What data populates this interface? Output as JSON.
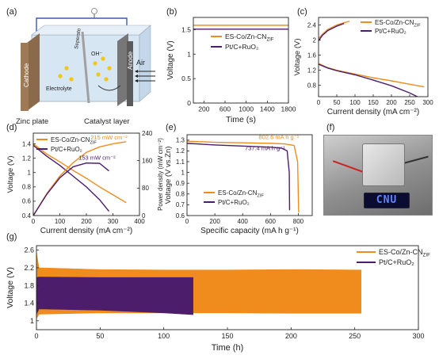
{
  "panels": {
    "a": "(a)",
    "b": "(b)",
    "c": "(c)",
    "d": "(d)",
    "e": "(e)",
    "f": "(f)",
    "g": "(g)"
  },
  "schematic": {
    "cathode": "Cathode",
    "anode": "Anode",
    "separator": "Seperato",
    "electrolyte": "Electrolyte",
    "ion": "OH⁻",
    "air": "Air",
    "zinc_plate": "Zinc plate",
    "catalyst_layer": "Catalyst layer"
  },
  "photo": {
    "display_text": "CNU"
  },
  "colors": {
    "es": "#f08c1e",
    "pt": "#4b1d6b"
  },
  "chart_data": [
    {
      "id": "b",
      "type": "line",
      "xlabel": "Time (s)",
      "ylabel": "Voltage (V)",
      "xlim": [
        0,
        1800
      ],
      "ylim": [
        0,
        1.75
      ],
      "xticks": [
        200,
        600,
        1000,
        1400,
        1800
      ],
      "yticks": [
        0.0,
        0.5,
        1.0,
        1.5
      ],
      "legend_placement": "center",
      "series": [
        {
          "name": "ES-Co/Zn-CN",
          "name_sub": "ZIF",
          "color": "#f08c1e",
          "x": [
            0,
            1800
          ],
          "y": [
            1.59,
            1.59
          ]
        },
        {
          "name": "Pt/C+RuO₂",
          "color": "#4b1d6b",
          "x": [
            0,
            1800
          ],
          "y": [
            1.51,
            1.51
          ]
        }
      ]
    },
    {
      "id": "c",
      "type": "line",
      "xlabel": "Current density (mA cm⁻²)",
      "ylabel": "Voltage (V)",
      "xlim": [
        0,
        300
      ],
      "ylim": [
        0.5,
        2.6
      ],
      "xticks": [
        0,
        50,
        100,
        150,
        200,
        250,
        300
      ],
      "yticks": [
        0.8,
        1.2,
        1.6,
        2.0,
        2.4
      ],
      "legend_placement": "top-right",
      "series": [
        {
          "name": "ES-Co/Zn-CN",
          "name_sub": "ZIF",
          "color": "#f08c1e",
          "group": "discharge",
          "x": [
            0,
            25,
            50,
            100,
            150,
            200,
            250,
            290
          ],
          "y": [
            1.38,
            1.27,
            1.2,
            1.1,
            1.0,
            0.92,
            0.83,
            0.76
          ]
        },
        {
          "name": "Pt/C+RuO₂",
          "color": "#4b1d6b",
          "group": "discharge",
          "x": [
            0,
            25,
            50,
            100,
            150,
            200,
            250,
            275
          ],
          "y": [
            1.36,
            1.26,
            1.19,
            1.08,
            0.94,
            0.79,
            0.6,
            0.48
          ]
        },
        {
          "name": "ES-Co/Zn-CN",
          "name_sub": "ZIF",
          "color": "#f08c1e",
          "group": "charge",
          "x": [
            0,
            10,
            25,
            50,
            70,
            85
          ],
          "y": [
            2.04,
            2.15,
            2.28,
            2.4,
            2.46,
            2.5
          ]
        },
        {
          "name": "Pt/C+RuO₂",
          "color": "#4b1d6b",
          "group": "charge",
          "x": [
            0,
            10,
            25,
            50,
            70
          ],
          "y": [
            1.98,
            2.12,
            2.25,
            2.37,
            2.44
          ]
        }
      ]
    },
    {
      "id": "d",
      "type": "line",
      "xlabel": "Current density (mA cm⁻²)",
      "ylabel": "Voltage (V)",
      "y2label": "Power density (mW cm⁻²)",
      "xlim": [
        0,
        400
      ],
      "ylim": [
        0.4,
        1.55
      ],
      "y2lim": [
        0,
        240
      ],
      "xticks": [
        0,
        100,
        200,
        300,
        400
      ],
      "yticks": [
        0.4,
        0.6,
        0.8,
        1.0,
        1.2,
        1.4
      ],
      "y2ticks": [
        0,
        80,
        160,
        240
      ],
      "legend_placement": "top-left",
      "annotations": [
        {
          "text": "215 mW cm⁻²",
          "color": "#f08c1e"
        },
        {
          "text": "153 mW cm⁻²",
          "color": "#4b1d6b"
        }
      ],
      "series": [
        {
          "name": "ES-Co/Zn-CN",
          "name_sub": "ZIF",
          "color": "#f08c1e",
          "kind": "voltage",
          "x": [
            0,
            50,
            100,
            150,
            200,
            250,
            300,
            350
          ],
          "y": [
            1.4,
            1.26,
            1.15,
            1.03,
            0.92,
            0.8,
            0.69,
            0.58
          ]
        },
        {
          "name": "Pt/C+RuO₂",
          "color": "#4b1d6b",
          "kind": "voltage",
          "x": [
            0,
            50,
            100,
            150,
            200,
            250,
            285
          ],
          "y": [
            1.38,
            1.23,
            1.1,
            0.95,
            0.8,
            0.62,
            0.46
          ]
        },
        {
          "name": "ES-Co/Zn-CN",
          "name_sub": "ZIF",
          "color": "#f08c1e",
          "kind": "power",
          "x": [
            0,
            50,
            100,
            150,
            200,
            250,
            300,
            350
          ],
          "y": [
            0,
            63,
            115,
            154,
            184,
            200,
            209,
            215
          ]
        },
        {
          "name": "Pt/C+RuO₂",
          "color": "#4b1d6b",
          "kind": "power",
          "x": [
            0,
            50,
            100,
            150,
            200,
            250,
            285
          ],
          "y": [
            0,
            61,
            110,
            142,
            153,
            152,
            130
          ]
        }
      ]
    },
    {
      "id": "e",
      "type": "line",
      "xlabel": "Specific capacity (mA h g⁻¹)",
      "ylabel": "Voltage (V vs.Zn)",
      "xlim": [
        0,
        900
      ],
      "ylim": [
        0.6,
        1.35
      ],
      "xticks": [
        0,
        200,
        400,
        600,
        800
      ],
      "yticks": [
        0.6,
        0.7,
        0.8,
        0.9,
        1.0,
        1.1,
        1.2,
        1.3
      ],
      "legend_placement": "bottom-left",
      "annotations": [
        {
          "text": "802.6 mA h g⁻¹",
          "color": "#f08c1e"
        },
        {
          "text": "737.4 mA h g⁻¹",
          "color": "#4b1d6b"
        }
      ],
      "series": [
        {
          "name": "ES-Co/Zn-CN",
          "name_sub": "ZIF",
          "color": "#f08c1e",
          "x": [
            0,
            200,
            400,
            600,
            700,
            770,
            795,
            802.6
          ],
          "y": [
            1.29,
            1.28,
            1.275,
            1.27,
            1.265,
            1.25,
            1.1,
            0.63
          ]
        },
        {
          "name": "Pt/C+RuO₂",
          "color": "#4b1d6b",
          "x": [
            0,
            200,
            400,
            600,
            680,
            720,
            735,
            737.4
          ],
          "y": [
            1.27,
            1.255,
            1.245,
            1.235,
            1.225,
            1.2,
            1.0,
            0.65
          ]
        }
      ]
    },
    {
      "id": "g",
      "type": "area",
      "xlabel": "Time (h)",
      "ylabel": "Voltage (V)",
      "xlim": [
        0,
        300
      ],
      "ylim": [
        0.8,
        2.7
      ],
      "xticks": [
        0,
        50,
        100,
        150,
        200,
        250,
        300
      ],
      "yticks": [
        1.0,
        1.4,
        1.8,
        2.2,
        2.6
      ],
      "legend_placement": "top-right",
      "series": [
        {
          "name": "ES-Co/Zn-CN",
          "name_sub": "ZIF",
          "color": "#f08c1e",
          "x": [
            0,
            2,
            50,
            100,
            150,
            200,
            255
          ],
          "upper": [
            2.55,
            2.2,
            2.16,
            2.15,
            2.15,
            2.16,
            2.15
          ],
          "lower": [
            1.05,
            1.15,
            1.18,
            1.18,
            1.18,
            1.17,
            1.17
          ]
        },
        {
          "name": "Pt/C+RuO₂",
          "color": "#4b1d6b",
          "x": [
            0,
            2,
            50,
            100,
            123
          ],
          "upper": [
            1.98,
            1.99,
            1.98,
            1.98,
            1.98
          ],
          "lower": [
            1.15,
            1.27,
            1.24,
            1.18,
            1.14
          ]
        }
      ]
    }
  ]
}
